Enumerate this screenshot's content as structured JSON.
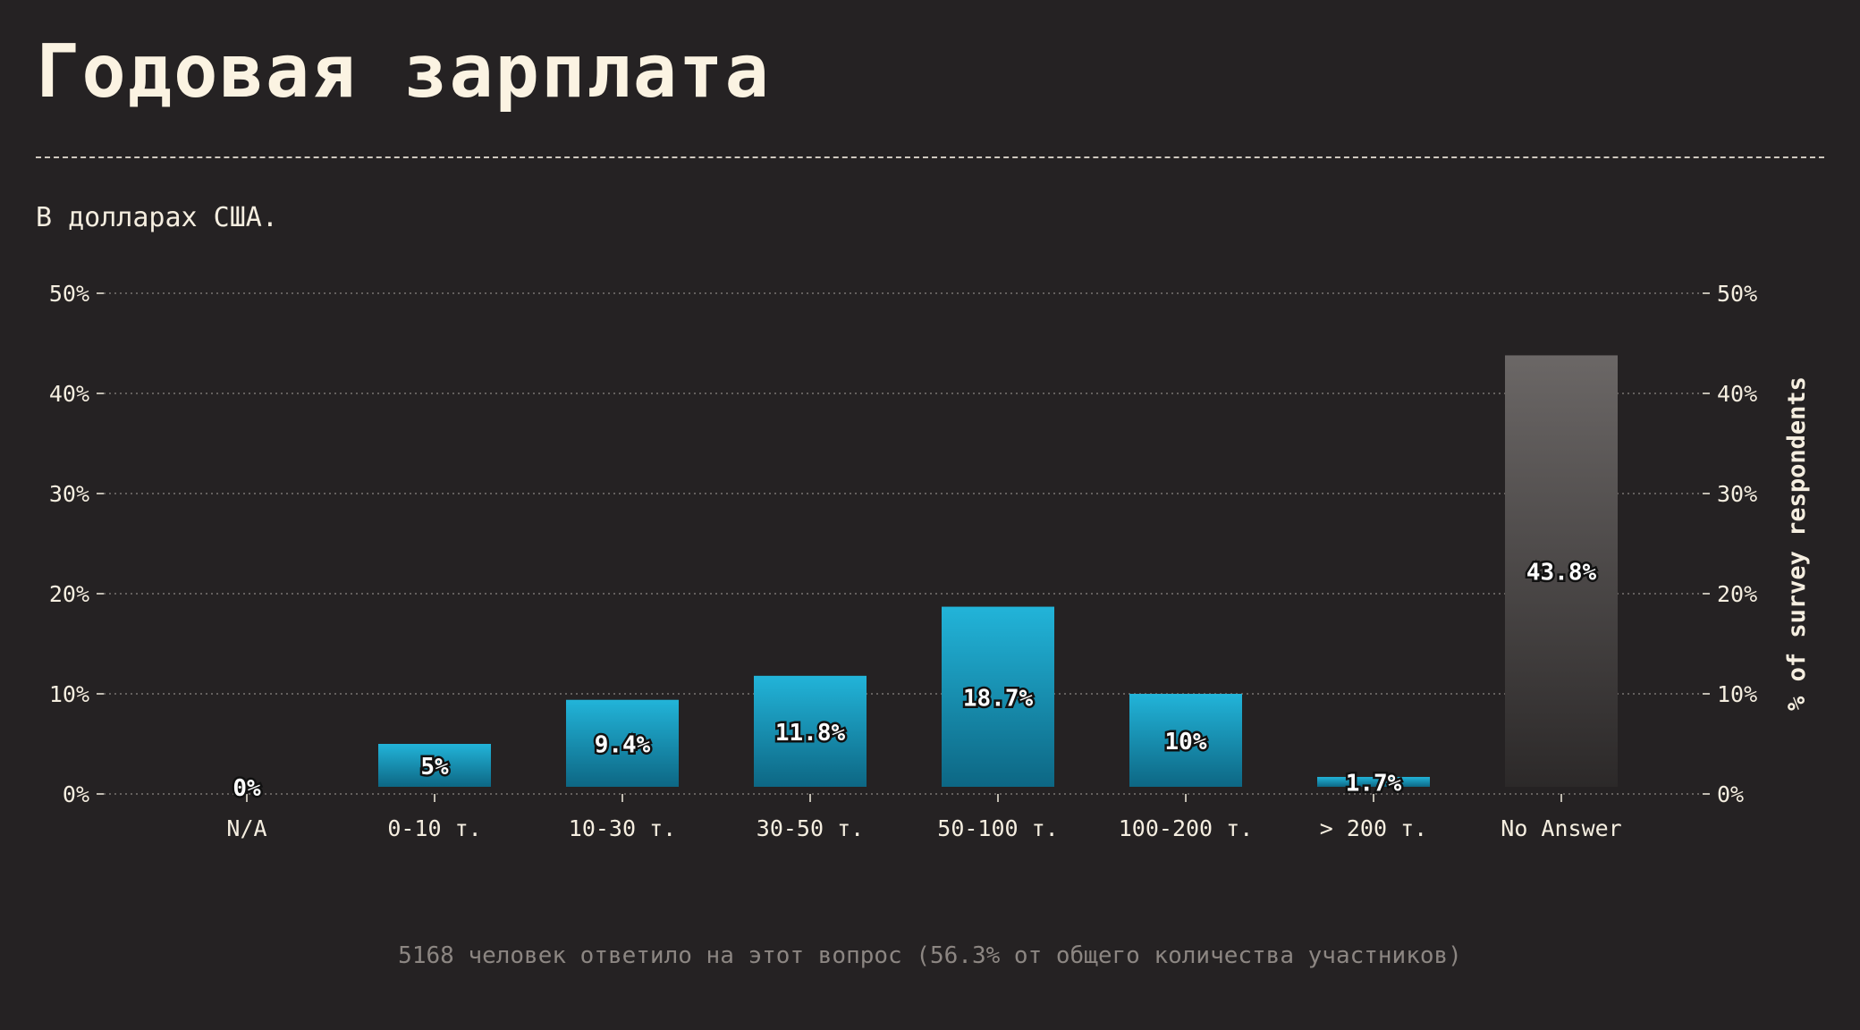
{
  "page": {
    "title": "Годовая зарплата",
    "subtitle": "В долларах США.",
    "footnote": "5168 человек ответило на этот вопрос (56.3% от общего количества участников)"
  },
  "colors": {
    "background": "#252223",
    "bar_top": "#22b4d9",
    "bar_bottom": "#0d6784",
    "na_bar_top": "#6b6766",
    "na_bar_bottom": "#2c2929",
    "text": "#f5eee0",
    "grid": "#7a7573"
  },
  "chart_data": {
    "type": "bar",
    "categories": [
      "N/A",
      "0-10 т.",
      "10-30 т.",
      "30-50 т.",
      "50-100 т.",
      "100-200 т.",
      "> 200 т.",
      "No Answer"
    ],
    "values": [
      0,
      5,
      9.4,
      11.8,
      18.7,
      10,
      1.7,
      43.8
    ],
    "data_labels": [
      "0%",
      "5%",
      "9.4%",
      "11.8%",
      "18.7%",
      "10%",
      "1.7%",
      "43.8%"
    ],
    "yticks": [
      "0%",
      "10%",
      "20%",
      "30%",
      "40%",
      "50%"
    ],
    "ytick_values": [
      0,
      10,
      20,
      30,
      40,
      50
    ],
    "ylim": [
      0,
      50
    ],
    "xlabel": "",
    "ylabel": "% of survey respondents",
    "grid": true,
    "legend": "none"
  }
}
